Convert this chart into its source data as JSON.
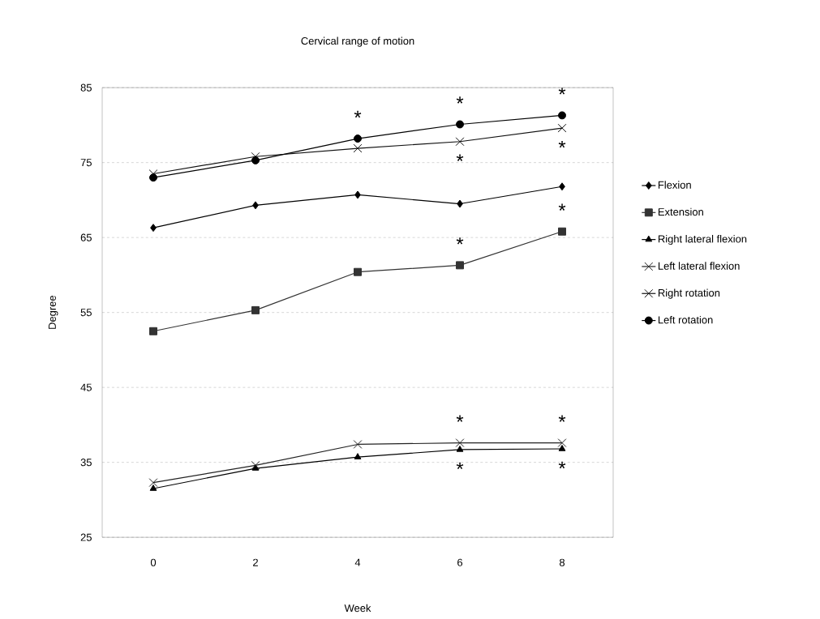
{
  "chart_data": {
    "type": "line",
    "title": "Cervical range of motion",
    "xlabel": "Week",
    "ylabel": "Degree",
    "categories": [
      "0",
      "2",
      "4",
      "6",
      "8"
    ],
    "series": [
      {
        "name": "Flexion",
        "color": "#000000",
        "marker": "diamond",
        "values": [
          66.3,
          69.3,
          70.7,
          69.5,
          71.8
        ]
      },
      {
        "name": "Extension",
        "color": "#333333",
        "marker": "square",
        "values": [
          52.5,
          55.3,
          60.4,
          61.3,
          65.8
        ]
      },
      {
        "name": "Right lateral flexion",
        "color": "#000000",
        "marker": "triangle",
        "values": [
          31.5,
          34.2,
          35.7,
          36.7,
          36.8
        ]
      },
      {
        "name": "Left lateral flexion",
        "color": "#222222",
        "marker": "cross",
        "values": [
          32.3,
          34.6,
          37.4,
          37.6,
          37.6
        ]
      },
      {
        "name": "Right rotation",
        "color": "#111111",
        "marker": "cross",
        "values": [
          73.5,
          75.8,
          76.9,
          77.8,
          79.6
        ]
      },
      {
        "name": "Left rotation",
        "color": "#000000",
        "marker": "circle",
        "values": [
          73.0,
          75.3,
          78.2,
          80.1,
          81.3
        ]
      }
    ],
    "ylim": [
      25,
      85
    ],
    "yticks": [
      25,
      35,
      45,
      55,
      65,
      75,
      85
    ],
    "grid": "y",
    "legend": "right",
    "annotations": [
      {
        "text": "*",
        "x": "4",
        "y": 78.2
      },
      {
        "text": "*",
        "x": "6",
        "y": 80.1
      },
      {
        "text": "*",
        "x": "6",
        "y": 77.8
      },
      {
        "text": "*",
        "x": "6",
        "y": 61.3
      },
      {
        "text": "*",
        "x": "6",
        "y": 37.6
      },
      {
        "text": "*",
        "x": "6",
        "y": 36.7
      },
      {
        "text": "*",
        "x": "8",
        "y": 81.3
      },
      {
        "text": "*",
        "x": "8",
        "y": 79.6
      },
      {
        "text": "*",
        "x": "8",
        "y": 65.8
      },
      {
        "text": "*",
        "x": "8",
        "y": 37.6
      },
      {
        "text": "*",
        "x": "8",
        "y": 36.8
      }
    ]
  }
}
